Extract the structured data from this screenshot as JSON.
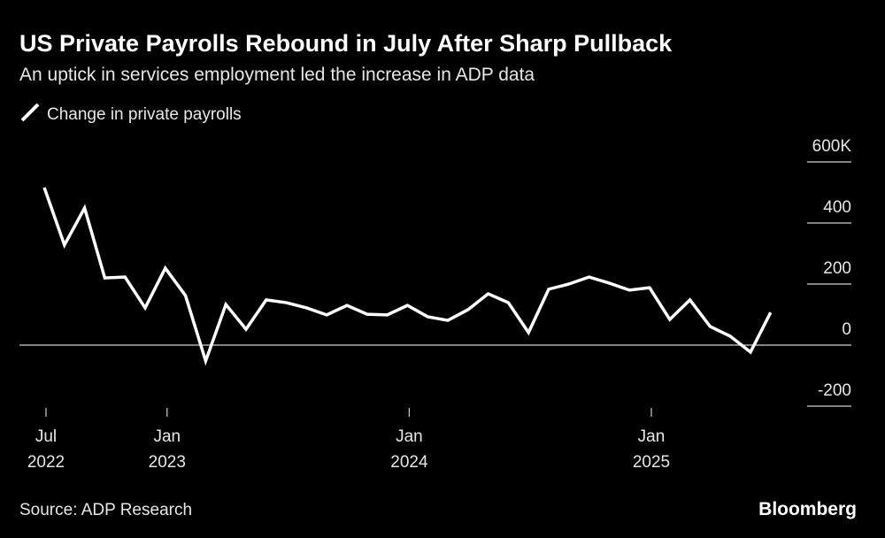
{
  "chart_data": {
    "type": "line",
    "title": "US Private Payrolls Rebound in July After Sharp Pullback",
    "subtitle": "An uptick in services employment led the increase in ADP data",
    "source": "Source: ADP Research",
    "brand": "Bloomberg",
    "x": [
      "2022-07",
      "2022-08",
      "2022-09",
      "2022-10",
      "2022-11",
      "2022-12",
      "2023-01",
      "2023-02",
      "2023-03",
      "2023-04",
      "2023-05",
      "2023-06",
      "2023-07",
      "2023-08",
      "2023-09",
      "2023-10",
      "2023-11",
      "2023-12",
      "2024-01",
      "2024-02",
      "2024-03",
      "2024-04",
      "2024-05",
      "2024-06",
      "2024-07",
      "2024-08",
      "2024-09",
      "2024-10",
      "2024-11",
      "2024-12",
      "2025-01",
      "2025-02",
      "2025-03",
      "2025-04",
      "2025-05",
      "2025-06",
      "2025-07"
    ],
    "series": [
      {
        "name": "Change in private payrolls",
        "color": "#ffffff",
        "values": [
          516,
          328,
          449,
          220,
          223,
          122,
          252,
          162,
          -52,
          133,
          52,
          148,
          139,
          122,
          99,
          130,
          101,
          99,
          130,
          93,
          81,
          116,
          168,
          139,
          41,
          183,
          200,
          223,
          203,
          180,
          188,
          84,
          148,
          61,
          29,
          -23,
          107
        ]
      }
    ],
    "xticks": [
      {
        "value": "2022-07",
        "label": "Jul 2022"
      },
      {
        "value": "2023-01",
        "label": "Jan 2023"
      },
      {
        "value": "2024-01",
        "label": "Jan 2024"
      },
      {
        "value": "2025-01",
        "label": "Jan 2025"
      }
    ],
    "ylim": [
      -200,
      600
    ],
    "yticks": [
      {
        "value": 600,
        "label": "600K"
      },
      400,
      200,
      0,
      -200
    ]
  }
}
